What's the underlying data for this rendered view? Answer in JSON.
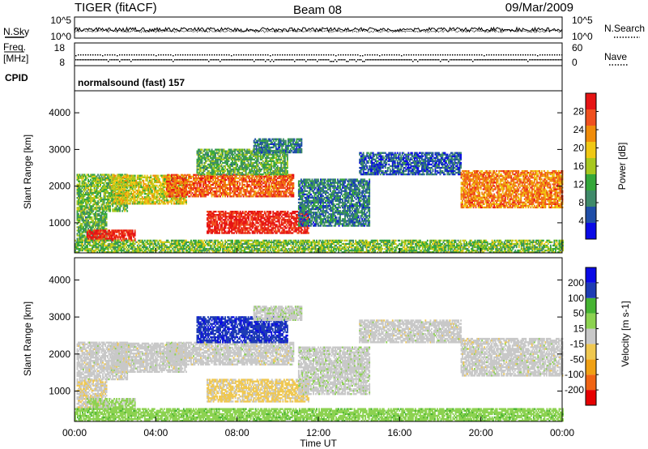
{
  "header": {
    "title": "TIGER (fitACF)",
    "beam": "Beam 08",
    "date": "09/Mar/2009"
  },
  "panel_labels": {
    "nsky": "N.Sky",
    "nsky_hi": "10^5",
    "nsky_lo": "10^0",
    "nsearch": "N.Search",
    "nsearch_hi": "10^5",
    "nsearch_lo": "10^0",
    "freq_label": "Freq.",
    "freq_unit": "[MHz]",
    "freq_hi": "18",
    "freq_lo": "8",
    "nave": "Nave",
    "nave_hi": "60",
    "nave_lo": "0",
    "cpid": "CPID",
    "cpid_text": "normalsound (fast) 157"
  },
  "colors": {
    "power": [
      "#0a0ae6",
      "#1f4ea8",
      "#3f8a6a",
      "#35a83a",
      "#a8c81e",
      "#f0c814",
      "#f08c0a",
      "#f0501e",
      "#e61414"
    ],
    "velocity": [
      "#e60000",
      "#f06414",
      "#f0a014",
      "#f0c850",
      "#c8c8c8",
      "#8cd250",
      "#46b432",
      "#1e3cb4",
      "#0a0ae6"
    ]
  },
  "chart_data": [
    {
      "type": "heatmap",
      "name": "power",
      "xlabel": "",
      "ylabel": "Slant Range [km]",
      "y_ticks": [
        "1000",
        "2000",
        "3000",
        "4000"
      ],
      "y_range": [
        180,
        4600
      ],
      "x_range_hours": [
        0,
        24
      ],
      "colorbar_label": "Power [dB]",
      "colorbar_ticks": [
        "4",
        "8",
        "12",
        "16",
        "20",
        "24",
        "28"
      ],
      "colorbar_range": [
        0,
        32
      ],
      "echo_regions": [
        {
          "t0": 0.1,
          "t1": 2.6,
          "r0": 1300,
          "r1": 2300,
          "value": 14
        },
        {
          "t0": 0.1,
          "t1": 1.6,
          "r0": 500,
          "r1": 1300,
          "value": 12
        },
        {
          "t0": 0.6,
          "t1": 3.0,
          "r0": 500,
          "r1": 800,
          "value": 30
        },
        {
          "t0": 1.8,
          "t1": 5.5,
          "r0": 1500,
          "r1": 2300,
          "value": 18
        },
        {
          "t0": 4.5,
          "t1": 10.8,
          "r0": 1700,
          "r1": 2300,
          "value": 26
        },
        {
          "t0": 6.0,
          "t1": 10.5,
          "r0": 2300,
          "r1": 3000,
          "value": 12
        },
        {
          "t0": 6.5,
          "t1": 11.5,
          "r0": 700,
          "r1": 1300,
          "value": 30
        },
        {
          "t0": 8.8,
          "t1": 11.2,
          "r0": 2900,
          "r1": 3300,
          "value": 8
        },
        {
          "t0": 11.0,
          "t1": 14.5,
          "r0": 900,
          "r1": 2200,
          "value": 8
        },
        {
          "t0": 14.0,
          "t1": 19.0,
          "r0": 2300,
          "r1": 2900,
          "value": 6
        },
        {
          "t0": 19.0,
          "t1": 24.0,
          "r0": 1400,
          "r1": 2400,
          "value": 24
        },
        {
          "t0": 0.0,
          "t1": 24.0,
          "r0": 180,
          "r1": 500,
          "value": 14
        }
      ]
    },
    {
      "type": "heatmap",
      "name": "velocity",
      "xlabel": "Time UT",
      "ylabel": "Slant Range [km]",
      "x_ticks": [
        "00:00",
        "04:00",
        "08:00",
        "12:00",
        "16:00",
        "20:00",
        "00:00"
      ],
      "y_ticks": [
        "1000",
        "2000",
        "3000",
        "4000"
      ],
      "y_range": [
        180,
        4600
      ],
      "x_range_hours": [
        0,
        24
      ],
      "colorbar_label": "Velocity [m s-1]",
      "colorbar_ticks": [
        "-200",
        "-100",
        "-50",
        "-15",
        "15",
        "50",
        "100",
        "200"
      ],
      "colorbar_range": [
        -250,
        250
      ],
      "echo_regions": [
        {
          "t0": 0.1,
          "t1": 2.6,
          "r0": 1300,
          "r1": 2300,
          "value": 0
        },
        {
          "t0": 0.1,
          "t1": 1.6,
          "r0": 500,
          "r1": 1300,
          "value": -20
        },
        {
          "t0": 0.6,
          "t1": 3.0,
          "r0": 500,
          "r1": 800,
          "value": 40
        },
        {
          "t0": 1.8,
          "t1": 5.5,
          "r0": 1500,
          "r1": 2300,
          "value": 0
        },
        {
          "t0": 4.5,
          "t1": 10.8,
          "r0": 1700,
          "r1": 2300,
          "value": 0
        },
        {
          "t0": 6.0,
          "t1": 10.5,
          "r0": 2300,
          "r1": 3000,
          "value": 180
        },
        {
          "t0": 6.5,
          "t1": 11.5,
          "r0": 700,
          "r1": 1300,
          "value": -40
        },
        {
          "t0": 8.8,
          "t1": 11.2,
          "r0": 2900,
          "r1": 3300,
          "value": 10
        },
        {
          "t0": 11.0,
          "t1": 14.5,
          "r0": 900,
          "r1": 2200,
          "value": 5
        },
        {
          "t0": 14.0,
          "t1": 19.0,
          "r0": 2300,
          "r1": 2900,
          "value": 0
        },
        {
          "t0": 19.0,
          "t1": 24.0,
          "r0": 1400,
          "r1": 2400,
          "value": 0
        },
        {
          "t0": 0.0,
          "t1": 24.0,
          "r0": 180,
          "r1": 500,
          "value": 60
        }
      ]
    }
  ]
}
